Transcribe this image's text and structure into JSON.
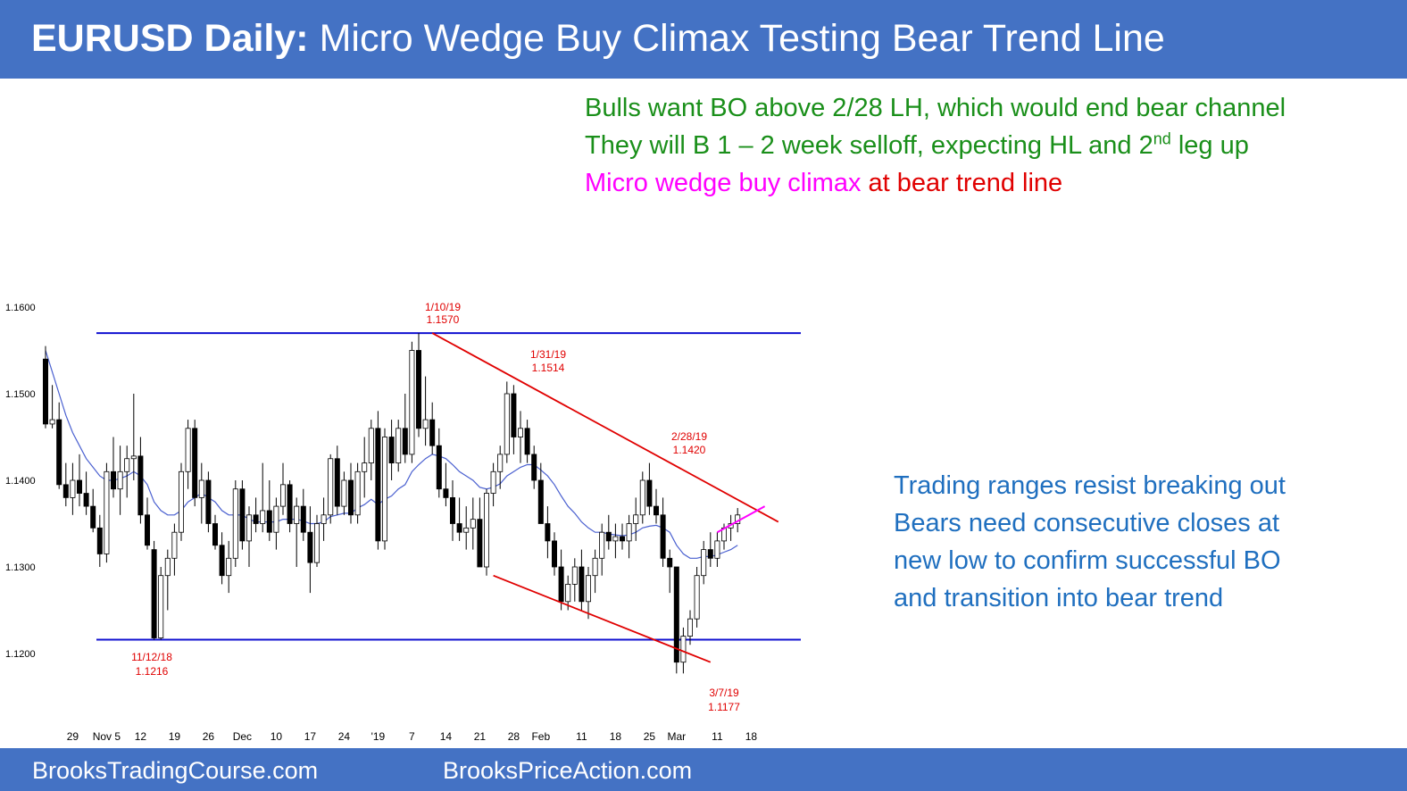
{
  "header": {
    "title_bold": "EURUSD Daily:",
    "title_rest": " Micro Wedge Buy Climax Testing Bear Trend Line"
  },
  "notes": {
    "line1": "Bulls want BO above 2/28 LH, which would end bear channel",
    "line2_pre": "They will B 1 – 2 week selloff, expecting HL and 2",
    "line2_sup": "nd",
    "line2_post": " leg up",
    "line3_magenta": "Micro wedge buy climax",
    "line3_red": " at bear trend line"
  },
  "side_notes": [
    "Trading ranges resist breaking out",
    "Bears need consecutive closes at",
    "new low to confirm successful BO",
    "and transition into bear trend"
  ],
  "footer": {
    "left": "BrooksTradingCourse.com",
    "right": "BrooksPriceAction.com"
  },
  "colors": {
    "header_bg": "#4472c4",
    "bull_note": "#1a8f1a",
    "magenta": "#ff00ff",
    "red": "#e00000",
    "blue_note": "#1f6fbf",
    "range_line": "#1010d0",
    "ema_line": "#4a60d0"
  },
  "chart_data": {
    "type": "candlestick",
    "title": "",
    "ylim": [
      1.115,
      1.162
    ],
    "yticks": [
      {
        "label": "1.1600",
        "value": 1.16
      },
      {
        "label": "1.1500",
        "value": 1.15
      },
      {
        "label": "1.1400",
        "value": 1.14
      },
      {
        "label": "1.1300",
        "value": 1.13
      },
      {
        "label": "1.1200",
        "value": 1.12
      }
    ],
    "xticks": [
      {
        "label": "29",
        "bar": 4
      },
      {
        "label": "Nov 5",
        "bar": 9
      },
      {
        "label": "12",
        "bar": 14
      },
      {
        "label": "19",
        "bar": 19
      },
      {
        "label": "26",
        "bar": 24
      },
      {
        "label": "Dec",
        "bar": 29
      },
      {
        "label": "10",
        "bar": 34
      },
      {
        "label": "17",
        "bar": 39
      },
      {
        "label": "24",
        "bar": 44
      },
      {
        "label": "'19",
        "bar": 49
      },
      {
        "label": "7",
        "bar": 54
      },
      {
        "label": "14",
        "bar": 59
      },
      {
        "label": "21",
        "bar": 64
      },
      {
        "label": "28",
        "bar": 69
      },
      {
        "label": "Feb",
        "bar": 73
      },
      {
        "label": "11",
        "bar": 79
      },
      {
        "label": "18",
        "bar": 84
      },
      {
        "label": "25",
        "bar": 89
      },
      {
        "label": "Mar",
        "bar": 93
      },
      {
        "label": "11",
        "bar": 99
      },
      {
        "label": "18",
        "bar": 104
      }
    ],
    "candles": [
      [
        1.154,
        1.1555,
        1.146,
        1.1465
      ],
      [
        1.1465,
        1.151,
        1.146,
        1.147
      ],
      [
        1.147,
        1.149,
        1.139,
        1.1395
      ],
      [
        1.1395,
        1.142,
        1.137,
        1.138
      ],
      [
        1.138,
        1.142,
        1.136,
        1.14
      ],
      [
        1.14,
        1.143,
        1.137,
        1.1385
      ],
      [
        1.1385,
        1.141,
        1.136,
        1.137
      ],
      [
        1.137,
        1.139,
        1.134,
        1.1345
      ],
      [
        1.1345,
        1.136,
        1.13,
        1.1315
      ],
      [
        1.1315,
        1.142,
        1.1305,
        1.141
      ],
      [
        1.141,
        1.145,
        1.138,
        1.139
      ],
      [
        1.139,
        1.144,
        1.136,
        1.141
      ],
      [
        1.141,
        1.144,
        1.138,
        1.1425
      ],
      [
        1.1425,
        1.15,
        1.14,
        1.1428
      ],
      [
        1.1428,
        1.145,
        1.135,
        1.136
      ],
      [
        1.136,
        1.138,
        1.132,
        1.1325
      ],
      [
        1.132,
        1.133,
        1.1216,
        1.1218
      ],
      [
        1.1218,
        1.13,
        1.1216,
        1.129
      ],
      [
        1.129,
        1.132,
        1.125,
        1.131
      ],
      [
        1.131,
        1.135,
        1.129,
        1.134
      ],
      [
        1.134,
        1.142,
        1.133,
        1.141
      ],
      [
        1.141,
        1.147,
        1.139,
        1.146
      ],
      [
        1.146,
        1.147,
        1.137,
        1.138
      ],
      [
        1.138,
        1.142,
        1.135,
        1.14
      ],
      [
        1.14,
        1.141,
        1.134,
        1.135
      ],
      [
        1.135,
        1.136,
        1.132,
        1.1325
      ],
      [
        1.1325,
        1.134,
        1.128,
        1.129
      ],
      [
        1.129,
        1.133,
        1.127,
        1.131
      ],
      [
        1.131,
        1.14,
        1.13,
        1.139
      ],
      [
        1.139,
        1.14,
        1.132,
        1.133
      ],
      [
        1.133,
        1.137,
        1.13,
        1.136
      ],
      [
        1.136,
        1.138,
        1.134,
        1.135
      ],
      [
        1.135,
        1.142,
        1.134,
        1.1365
      ],
      [
        1.1365,
        1.14,
        1.133,
        1.134
      ],
      [
        1.134,
        1.138,
        1.132,
        1.137
      ],
      [
        1.137,
        1.142,
        1.136,
        1.1395
      ],
      [
        1.1395,
        1.14,
        1.134,
        1.135
      ],
      [
        1.135,
        1.138,
        1.13,
        1.137
      ],
      [
        1.137,
        1.139,
        1.133,
        1.134
      ],
      [
        1.134,
        1.137,
        1.127,
        1.1305
      ],
      [
        1.1305,
        1.136,
        1.13,
        1.135
      ],
      [
        1.135,
        1.138,
        1.133,
        1.136
      ],
      [
        1.136,
        1.143,
        1.135,
        1.1425
      ],
      [
        1.1425,
        1.144,
        1.136,
        1.137
      ],
      [
        1.137,
        1.141,
        1.136,
        1.14
      ],
      [
        1.14,
        1.142,
        1.135,
        1.136
      ],
      [
        1.136,
        1.142,
        1.135,
        1.141
      ],
      [
        1.141,
        1.145,
        1.138,
        1.142
      ],
      [
        1.142,
        1.147,
        1.14,
        1.146
      ],
      [
        1.146,
        1.148,
        1.132,
        1.133
      ],
      [
        1.133,
        1.146,
        1.132,
        1.145
      ],
      [
        1.145,
        1.147,
        1.14,
        1.142
      ],
      [
        1.142,
        1.147,
        1.141,
        1.146
      ],
      [
        1.146,
        1.15,
        1.142,
        1.143
      ],
      [
        1.143,
        1.156,
        1.142,
        1.155
      ],
      [
        1.155,
        1.157,
        1.145,
        1.146
      ],
      [
        1.146,
        1.152,
        1.144,
        1.147
      ],
      [
        1.147,
        1.149,
        1.143,
        1.144
      ],
      [
        1.144,
        1.146,
        1.138,
        1.139
      ],
      [
        1.139,
        1.142,
        1.137,
        1.138
      ],
      [
        1.138,
        1.14,
        1.133,
        1.135
      ],
      [
        1.135,
        1.138,
        1.133,
        1.134
      ],
      [
        1.134,
        1.137,
        1.132,
        1.1345
      ],
      [
        1.1345,
        1.138,
        1.132,
        1.1355
      ],
      [
        1.1355,
        1.138,
        1.13,
        1.13
      ],
      [
        1.13,
        1.139,
        1.129,
        1.1385
      ],
      [
        1.1385,
        1.142,
        1.137,
        1.141
      ],
      [
        1.141,
        1.144,
        1.139,
        1.143
      ],
      [
        1.143,
        1.1514,
        1.142,
        1.15
      ],
      [
        1.15,
        1.151,
        1.143,
        1.145
      ],
      [
        1.145,
        1.148,
        1.142,
        1.146
      ],
      [
        1.146,
        1.147,
        1.142,
        1.143
      ],
      [
        1.143,
        1.144,
        1.139,
        1.14
      ],
      [
        1.14,
        1.142,
        1.135,
        1.135
      ],
      [
        1.135,
        1.137,
        1.131,
        1.133
      ],
      [
        1.133,
        1.134,
        1.129,
        1.13
      ],
      [
        1.13,
        1.132,
        1.125,
        1.126
      ],
      [
        1.126,
        1.129,
        1.125,
        1.128
      ],
      [
        1.128,
        1.131,
        1.126,
        1.13
      ],
      [
        1.13,
        1.132,
        1.125,
        1.126
      ],
      [
        1.126,
        1.13,
        1.124,
        1.129
      ],
      [
        1.129,
        1.132,
        1.127,
        1.131
      ],
      [
        1.131,
        1.135,
        1.129,
        1.134
      ],
      [
        1.134,
        1.136,
        1.132,
        1.133
      ],
      [
        1.133,
        1.135,
        1.131,
        1.1335
      ],
      [
        1.1335,
        1.135,
        1.132,
        1.133
      ],
      [
        1.133,
        1.136,
        1.131,
        1.135
      ],
      [
        1.135,
        1.138,
        1.133,
        1.136
      ],
      [
        1.136,
        1.141,
        1.135,
        1.14
      ],
      [
        1.14,
        1.142,
        1.136,
        1.137
      ],
      [
        1.137,
        1.139,
        1.135,
        1.136
      ],
      [
        1.136,
        1.138,
        1.13,
        1.131
      ],
      [
        1.131,
        1.132,
        1.127,
        1.13
      ],
      [
        1.13,
        1.13,
        1.1177,
        1.119
      ],
      [
        1.119,
        1.123,
        1.1177,
        1.122
      ],
      [
        1.122,
        1.125,
        1.121,
        1.124
      ],
      [
        1.124,
        1.13,
        1.123,
        1.129
      ],
      [
        1.129,
        1.133,
        1.128,
        1.132
      ],
      [
        1.132,
        1.134,
        1.13,
        1.131
      ],
      [
        1.131,
        1.134,
        1.13,
        1.133
      ],
      [
        1.133,
        1.135,
        1.132,
        1.1345
      ],
      [
        1.1345,
        1.136,
        1.133,
        1.135
      ],
      [
        1.135,
        1.1368,
        1.134,
        1.136
      ]
    ],
    "ema20": [
      1.155,
      1.1525,
      1.15,
      1.1475,
      1.1455,
      1.144,
      1.1425,
      1.1415,
      1.1405,
      1.14,
      1.14,
      1.1402,
      1.1405,
      1.141,
      1.1405,
      1.1395,
      1.1375,
      1.1365,
      1.136,
      1.136,
      1.1365,
      1.1375,
      1.138,
      1.1385,
      1.138,
      1.1375,
      1.1365,
      1.136,
      1.136,
      1.136,
      1.1355,
      1.1352,
      1.1352,
      1.1352,
      1.1352,
      1.1355,
      1.1355,
      1.1355,
      1.1353,
      1.135,
      1.135,
      1.1352,
      1.1358,
      1.136,
      1.1362,
      1.1362,
      1.1368,
      1.1372,
      1.1378,
      1.1372,
      1.1378,
      1.1382,
      1.139,
      1.1395,
      1.141,
      1.1418,
      1.1425,
      1.143,
      1.1428,
      1.1425,
      1.1418,
      1.141,
      1.1405,
      1.14,
      1.1392,
      1.139,
      1.1392,
      1.1396,
      1.1405,
      1.141,
      1.1415,
      1.1418,
      1.1418,
      1.1412,
      1.1405,
      1.1395,
      1.1382,
      1.137,
      1.1362,
      1.1352,
      1.1345,
      1.134,
      1.134,
      1.1338,
      1.1337,
      1.1336,
      1.1337,
      1.134,
      1.1345,
      1.1347,
      1.1348,
      1.1345,
      1.134,
      1.1325,
      1.1315,
      1.131,
      1.131,
      1.1312,
      1.1312,
      1.1314,
      1.1317,
      1.132,
      1.1325
    ],
    "horizontal_lines": [
      1.157,
      1.1216
    ],
    "bear_trend_line": {
      "from_bar": 57,
      "from": 1.157,
      "to_bar": 108,
      "to": 1.1352
    },
    "bear_channel_line": {
      "from_bar": 66,
      "from": 1.129,
      "to_bar": 98,
      "to": 1.119
    },
    "micro_wedge_line": {
      "from_bar": 99,
      "from": 1.134,
      "to_bar": 106,
      "to": 1.137
    },
    "annotations": [
      {
        "date": "1/10/19",
        "price": "1.1570",
        "bar": 56
      },
      {
        "date": "1/31/19",
        "price": "1.1514",
        "bar": 72
      },
      {
        "date": "2/28/19",
        "price": "1.1420",
        "bar": 92
      },
      {
        "date": "11/12/18",
        "price": "1.1216",
        "bar": 17
      },
      {
        "date": "3/7/19",
        "price": "1.1177",
        "bar": 94
      }
    ]
  }
}
